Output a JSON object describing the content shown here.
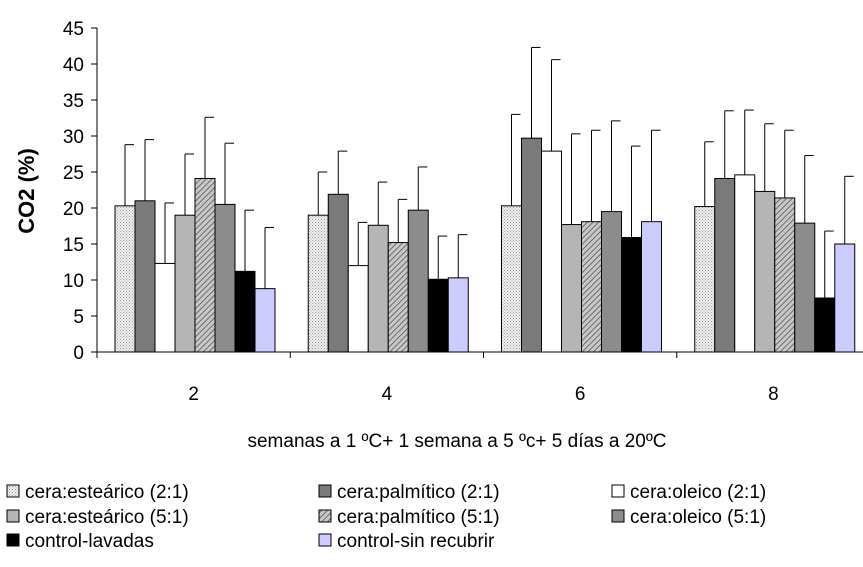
{
  "chart_data": {
    "type": "bar",
    "xlabel": "semanas a 1 ºC+ 1 semana a 5 ºc+ 5 días a 20ºC",
    "ylabel": "CO2 (%)",
    "ylim": [
      0,
      45
    ],
    "yticks": [
      0,
      5,
      10,
      15,
      20,
      25,
      30,
      35,
      40,
      45
    ],
    "grid": false,
    "legend_position": "bottom",
    "categories": [
      "2",
      "4",
      "6",
      "8"
    ],
    "series": [
      {
        "name": "cera:esteárico (2:1)",
        "fill": "#e2e2e2",
        "pattern": "dots",
        "values": [
          20.3,
          19.0,
          20.3,
          20.2
        ],
        "error": [
          8.5,
          6.0,
          12.7,
          9.0
        ]
      },
      {
        "name": "cera:palmítico (2:1)",
        "fill": "#7a7a7a",
        "pattern": "none",
        "values": [
          21.0,
          21.9,
          29.7,
          24.1
        ],
        "error": [
          8.5,
          6.0,
          12.6,
          9.4
        ]
      },
      {
        "name": "cera:oleico (2:1)",
        "fill": "#ffffff",
        "pattern": "none",
        "values": [
          12.3,
          12.0,
          27.9,
          24.6
        ],
        "error": [
          8.4,
          6.0,
          12.7,
          9.0
        ]
      },
      {
        "name": "cera:esteárico (5:1)",
        "fill": "#b5b5b5",
        "pattern": "none",
        "values": [
          19.0,
          17.6,
          17.7,
          22.3
        ],
        "error": [
          8.5,
          6.0,
          12.6,
          9.4
        ]
      },
      {
        "name": "cera:palmítico (5:1)",
        "fill": "#a6a6a6",
        "pattern": "hatch",
        "values": [
          24.1,
          15.2,
          18.1,
          21.4
        ],
        "error": [
          8.5,
          6.0,
          12.7,
          9.4
        ]
      },
      {
        "name": "cera:oleico (5:1)",
        "fill": "#8c8c8c",
        "pattern": "none",
        "values": [
          20.5,
          19.7,
          19.5,
          17.9
        ],
        "error": [
          8.5,
          6.0,
          12.6,
          9.4
        ]
      },
      {
        "name": "control-lavadas",
        "fill": "#000000",
        "pattern": "none",
        "values": [
          11.2,
          10.1,
          15.9,
          7.5
        ],
        "error": [
          8.5,
          6.0,
          12.7,
          9.3
        ]
      },
      {
        "name": "control-sin recubrir",
        "fill": "#ccccff",
        "pattern": "none",
        "values": [
          8.8,
          10.3,
          18.1,
          15.0
        ],
        "error": [
          8.5,
          6.0,
          12.7,
          9.4
        ]
      }
    ]
  }
}
